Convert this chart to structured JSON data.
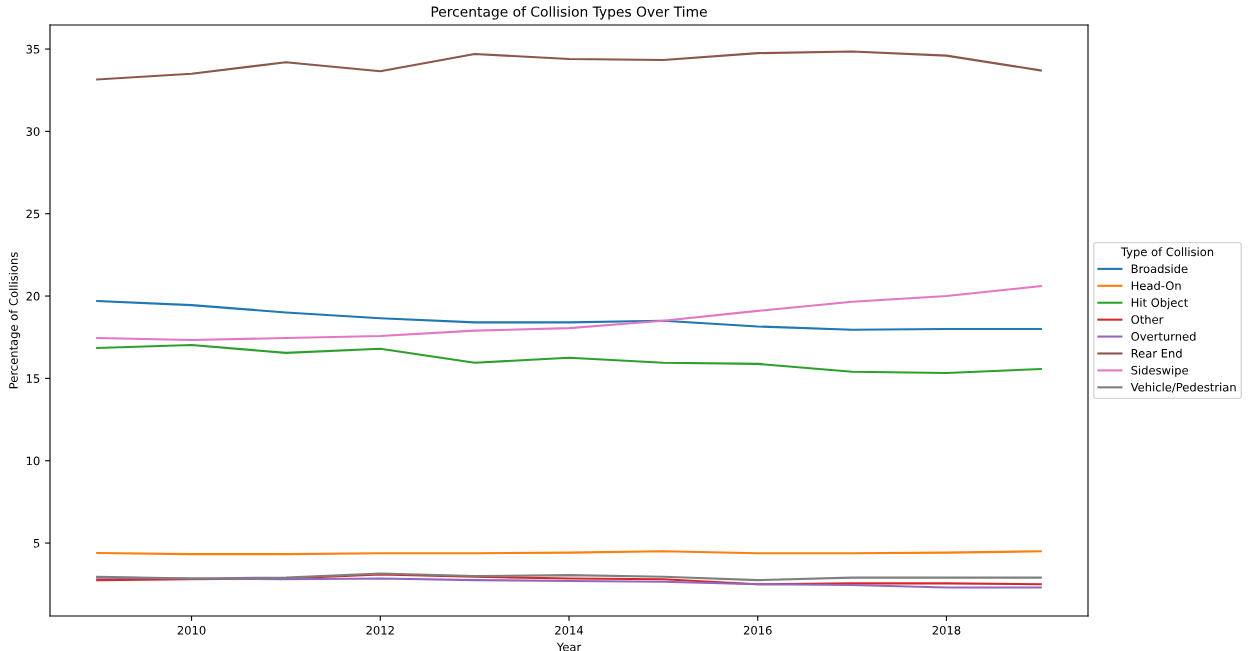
{
  "chart_data": {
    "type": "line",
    "title": "Percentage of Collision Types Over Time",
    "xlabel": "Year",
    "ylabel": "Percentage of Collisions",
    "legend_title": "Type of Collision",
    "legend": "right",
    "grid": false,
    "x": [
      2009,
      2010,
      2011,
      2012,
      2013,
      2014,
      2015,
      2016,
      2017,
      2018,
      2019
    ],
    "xlim": [
      2008.5,
      2019.5
    ],
    "xticks": [
      2010,
      2012,
      2014,
      2016,
      2018
    ],
    "ylim": [
      0.57,
      36.46
    ],
    "yticks": [
      5,
      10,
      15,
      20,
      25,
      30,
      35
    ],
    "series": [
      {
        "name": "Broadside",
        "color": "#1f77b4",
        "values": [
          19.7,
          19.45,
          19.0,
          18.65,
          18.4,
          18.4,
          18.5,
          18.15,
          17.95,
          18.0,
          18.0
        ]
      },
      {
        "name": "Head-On",
        "color": "#ff7f0e",
        "values": [
          4.4,
          4.33,
          4.33,
          4.38,
          4.38,
          4.42,
          4.5,
          4.38,
          4.38,
          4.42,
          4.5
        ]
      },
      {
        "name": "Hit Object",
        "color": "#2ca02c",
        "values": [
          16.85,
          17.03,
          16.55,
          16.8,
          15.95,
          16.25,
          15.95,
          15.88,
          15.4,
          15.33,
          15.57
        ]
      },
      {
        "name": "Other",
        "color": "#d62728",
        "values": [
          2.75,
          2.8,
          2.85,
          3.1,
          2.95,
          2.85,
          2.8,
          2.5,
          2.55,
          2.55,
          2.5
        ]
      },
      {
        "name": "Overturned",
        "color": "#9467bd",
        "values": [
          2.9,
          2.85,
          2.8,
          2.85,
          2.75,
          2.7,
          2.65,
          2.5,
          2.45,
          2.3,
          2.3
        ]
      },
      {
        "name": "Rear End",
        "color": "#8c564b",
        "values": [
          33.15,
          33.5,
          34.2,
          33.65,
          34.7,
          34.4,
          34.33,
          34.75,
          34.85,
          34.6,
          33.7
        ]
      },
      {
        "name": "Sideswipe",
        "color": "#e377c2",
        "values": [
          17.45,
          17.33,
          17.45,
          17.57,
          17.9,
          18.05,
          18.5,
          19.1,
          19.65,
          20.0,
          20.6
        ]
      },
      {
        "name": "Vehicle/Pedestrian",
        "color": "#7f7f7f",
        "values": [
          2.95,
          2.85,
          2.9,
          3.15,
          3.0,
          3.05,
          2.95,
          2.75,
          2.9,
          2.9,
          2.9
        ]
      }
    ]
  }
}
